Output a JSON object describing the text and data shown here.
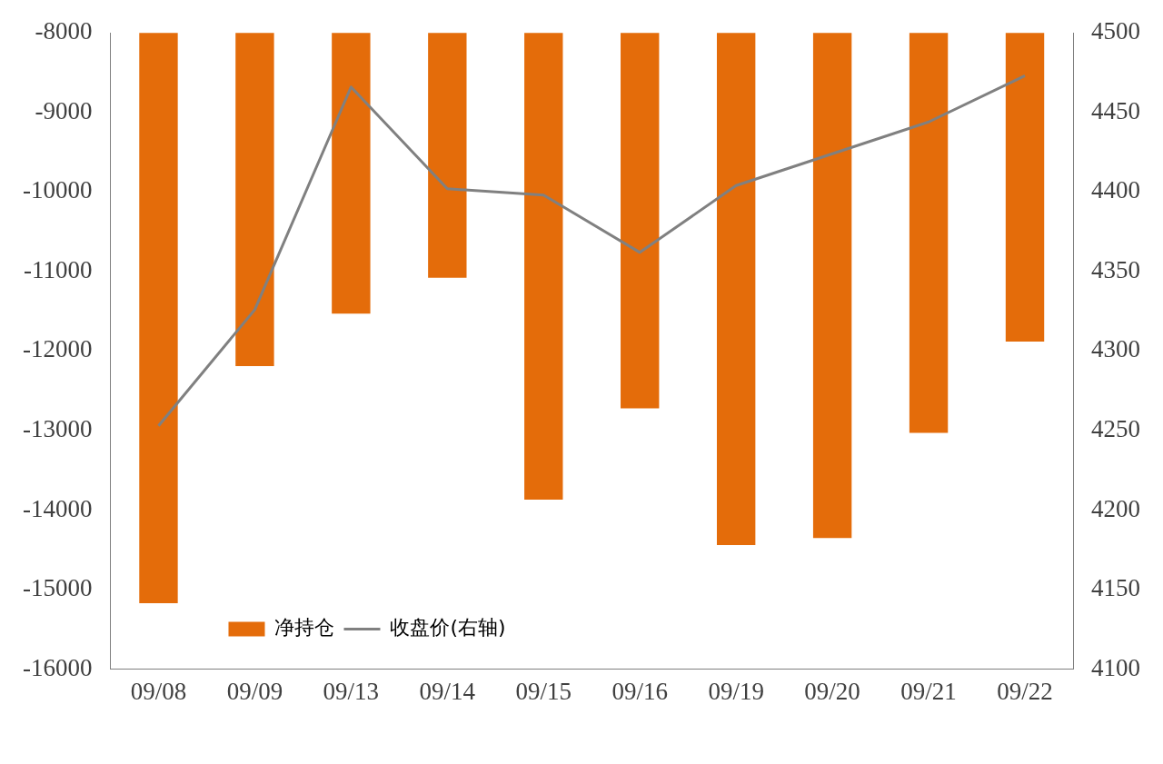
{
  "chart_data": {
    "type": "bar",
    "categories": [
      "09/08",
      "09/09",
      "09/13",
      "09/14",
      "09/15",
      "09/16",
      "09/19",
      "09/20",
      "09/21",
      "09/22"
    ],
    "series": [
      {
        "name": "净持仓",
        "color": "#e46c0a",
        "values": [
          -15170,
          -12190,
          -11530,
          -11080,
          -13870,
          -12720,
          -14440,
          -14350,
          -13030,
          -11880
        ]
      },
      {
        "name": "收盘价(右轴)",
        "type": "line",
        "axis": "y2",
        "color": "#808080",
        "values": [
          4253,
          4326,
          4466,
          4402,
          4398,
          4362,
          4404,
          4424,
          4444,
          4473
        ]
      }
    ],
    "ylim": [
      -16000,
      -8000
    ],
    "yticks": [
      -16000,
      -15000,
      -14000,
      -13000,
      -12000,
      -11000,
      -10000,
      -9000,
      -8000
    ],
    "y2lim": [
      4100,
      4500
    ],
    "y2ticks": [
      4100,
      4150,
      4200,
      4250,
      4300,
      4350,
      4400,
      4450,
      4500
    ],
    "grid": false,
    "legend": "bottom",
    "marker": "none",
    "line_style": "solid"
  }
}
